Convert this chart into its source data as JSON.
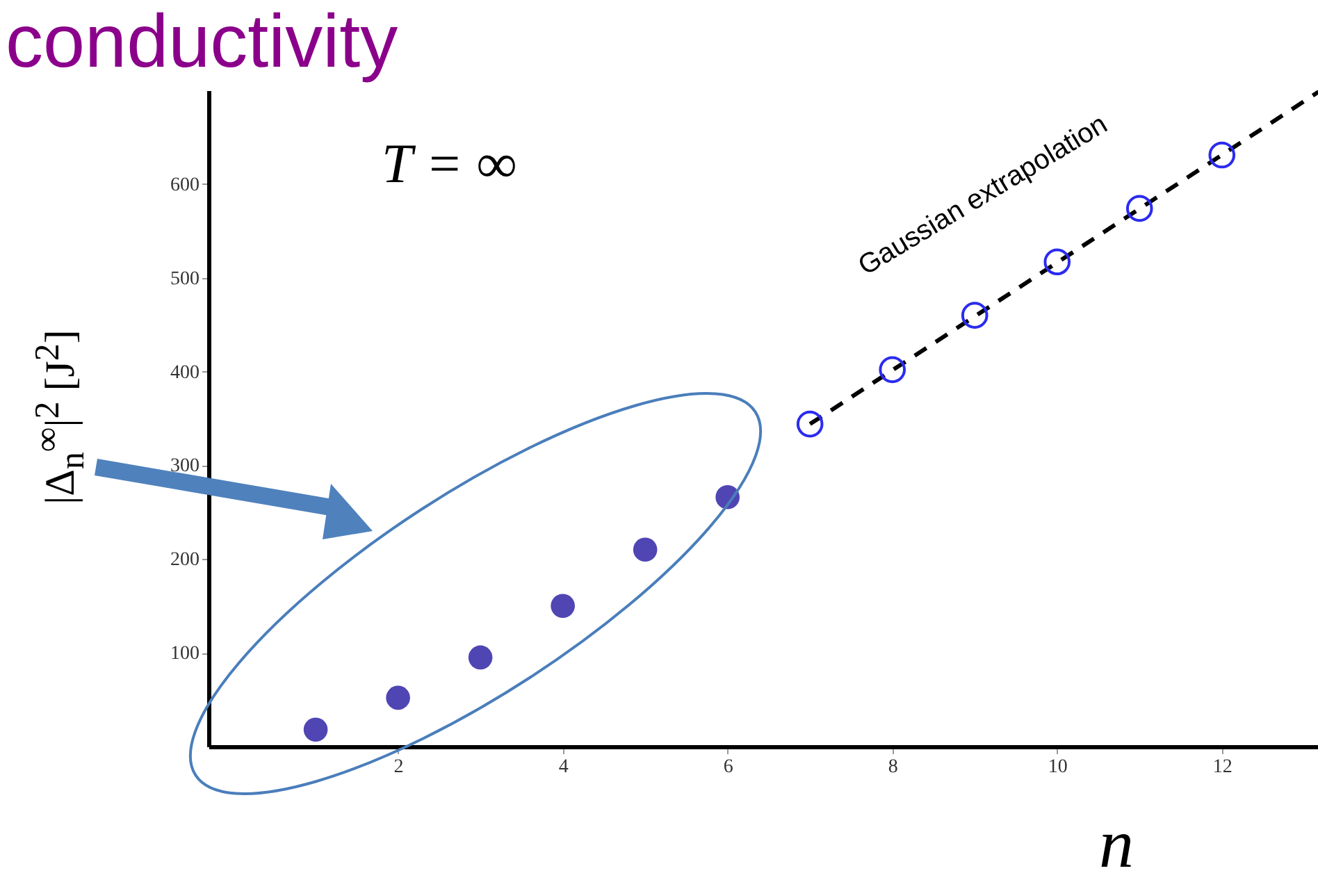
{
  "chart_data": {
    "type": "scatter",
    "title": "conductivity",
    "xlabel": "n",
    "ylabel": "|Δ$_{n}$$^{∞}$|$^{2}$   [J$^{2}$]",
    "annotations": [
      "T = ∞",
      "Gaussian extrapolation"
    ],
    "xlim": [
      -0.3,
      13.2
    ],
    "xticks": [
      2,
      4,
      6,
      8,
      10,
      12
    ],
    "ylim": [
      0,
      700
    ],
    "yticks": [
      100,
      200,
      300,
      400,
      500,
      600
    ],
    "marker": "circle",
    "line_style": "dashed",
    "grid": false,
    "series": [
      {
        "color": "#4f45b3",
        "x": [
          1,
          2,
          3,
          4,
          5,
          6
        ],
        "values": [
          18,
          52,
          95,
          150,
          210,
          266
        ]
      },
      {
        "color": "#2b2bf0",
        "x": [
          7,
          8,
          9,
          10,
          11,
          12
        ],
        "values": [
          344,
          402,
          460,
          517,
          574,
          631
        ]
      },
      {
        "type": "line",
        "marker": "none",
        "color": "#000000",
        "x": [
          7,
          13.2
        ],
        "values": [
          344,
          700
        ]
      }
    ]
  }
}
